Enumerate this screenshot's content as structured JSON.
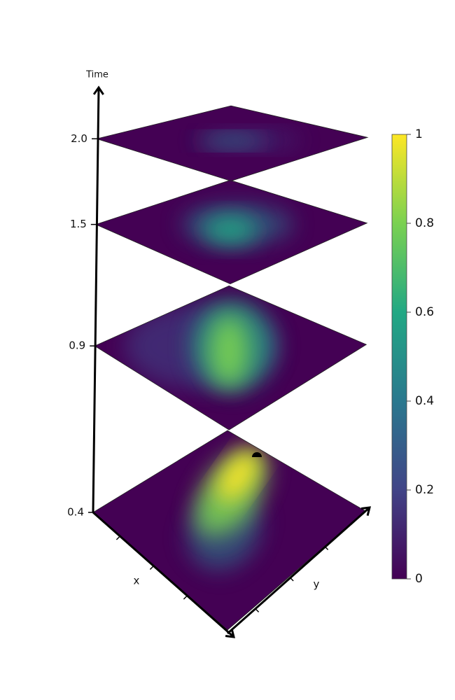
{
  "chart_data": {
    "type": "heatmap-stack",
    "z_label": "Time",
    "zticks": [
      0.4,
      0.9,
      1.5,
      {
        "value": 2,
        "label": "2.0"
      }
    ],
    "x_label": "x",
    "y_label": "y",
    "colorscale": [
      "#440154",
      "#414487",
      "#2a788e",
      "#22a884",
      "#7ad151",
      "#fde725"
    ],
    "colorbar": {
      "lim": [
        0,
        1
      ],
      "ticks": [
        0,
        0.2,
        0.4,
        0.6,
        0.8,
        1
      ]
    }
  }
}
